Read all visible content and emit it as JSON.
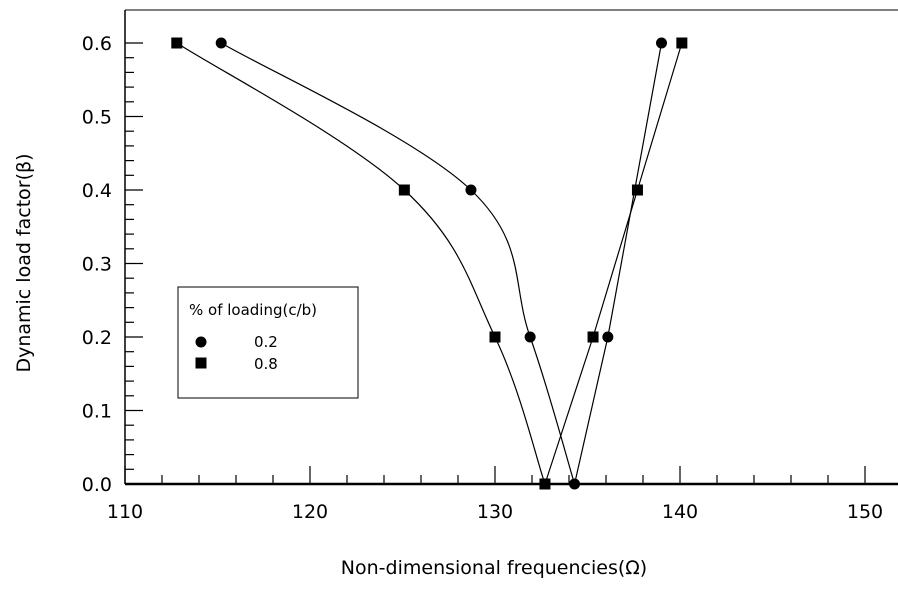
{
  "chart_data": {
    "type": "line",
    "title": "",
    "xlabel": "Non-dimensional frequencies(Ω)",
    "ylabel": "Dynamic load factor(β)",
    "xlim": [
      110,
      152
    ],
    "ylim": [
      0,
      0.6
    ],
    "x_ticks": [
      "110",
      "120",
      "130",
      "140",
      "150"
    ],
    "y_ticks": [
      "0.0",
      "0.1",
      "0.2",
      "0.3",
      "0.4",
      "0.5",
      "0.6"
    ],
    "grid": false,
    "legend": {
      "title": "% of loading(c/b)",
      "position": "middle-left"
    },
    "series": [
      {
        "name": "0.2",
        "marker": "circle",
        "color": "#000000",
        "points": [
          {
            "x": 115.2,
            "y": 0.6
          },
          {
            "x": 128.7,
            "y": 0.4
          },
          {
            "x": 131.9,
            "y": 0.2
          },
          {
            "x": 134.3,
            "y": 0.0
          },
          {
            "x": 136.1,
            "y": 0.2
          },
          {
            "x": 139.0,
            "y": 0.6
          }
        ]
      },
      {
        "name": "0.8",
        "marker": "square",
        "color": "#000000",
        "points": [
          {
            "x": 112.8,
            "y": 0.6
          },
          {
            "x": 125.1,
            "y": 0.4
          },
          {
            "x": 130.0,
            "y": 0.2
          },
          {
            "x": 132.7,
            "y": 0.0
          },
          {
            "x": 135.3,
            "y": 0.2
          },
          {
            "x": 137.7,
            "y": 0.4
          },
          {
            "x": 140.1,
            "y": 0.6
          }
        ]
      }
    ]
  }
}
